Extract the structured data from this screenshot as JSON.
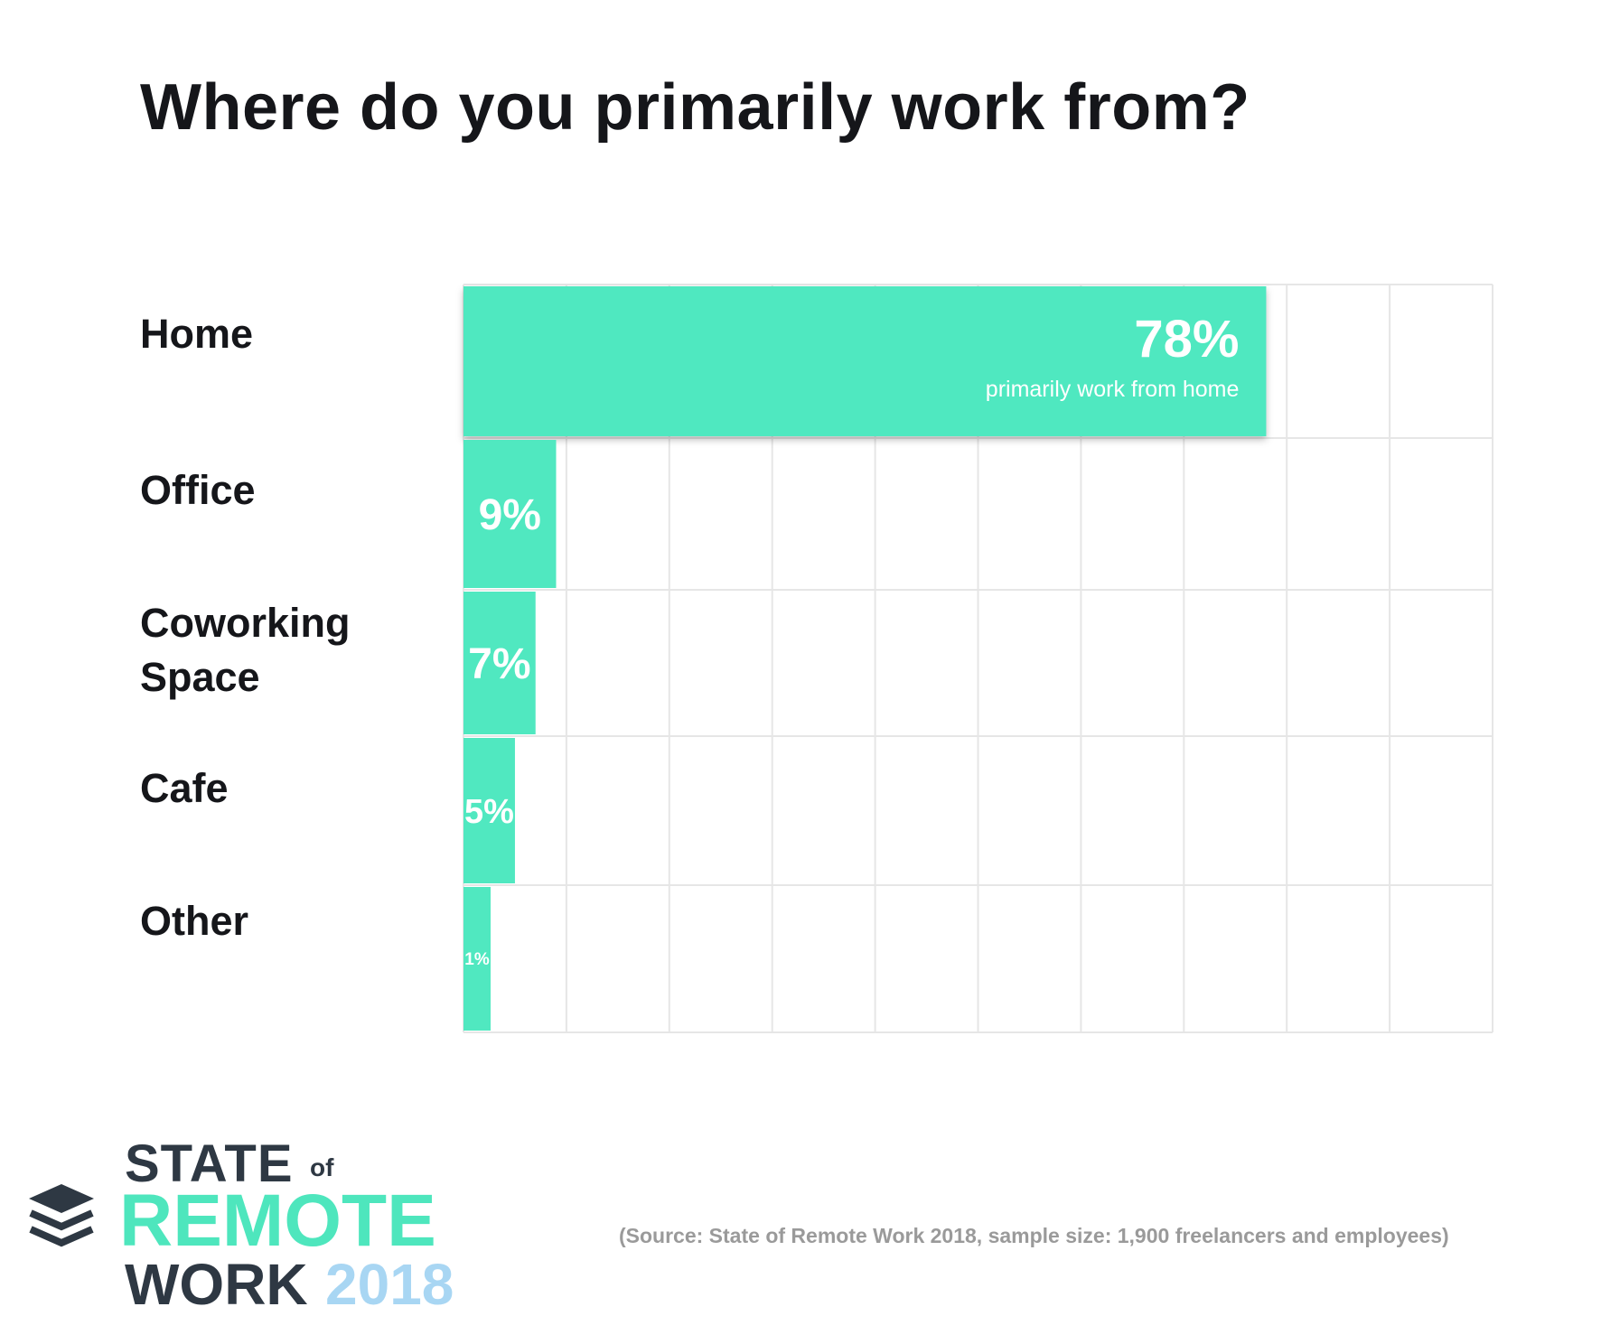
{
  "title": "Where do you primarily work from?",
  "chart_data": {
    "type": "bar",
    "orientation": "horizontal",
    "categories": [
      "Home",
      "Office",
      "Coworking Space",
      "Cafe",
      "Other"
    ],
    "values": [
      78,
      9,
      7,
      5,
      1
    ],
    "value_labels": [
      "78%",
      "9%",
      "7%",
      "5%",
      "1%"
    ],
    "highlight_annotation": "primarily work from home",
    "xlim": [
      0,
      100
    ],
    "grid": true,
    "title": "Where do you primarily work from?",
    "xlabel": "",
    "ylabel": ""
  },
  "colors": {
    "bar": "#50e8c0",
    "grid": "#e6e6e6",
    "text": "#15161a",
    "logo_dark": "#2e3843",
    "logo_accent": "#4ee6bd",
    "logo_year": "#a8d6f3",
    "source": "#9a9a9a"
  },
  "logo": {
    "icon": "stacked-layers-icon",
    "state": "STATE",
    "of": "of",
    "remote": "REMOTE",
    "work": "WORK",
    "year": "2018"
  },
  "source": "(Source: State of Remote Work 2018, sample size: 1,900 freelancers and employees)"
}
